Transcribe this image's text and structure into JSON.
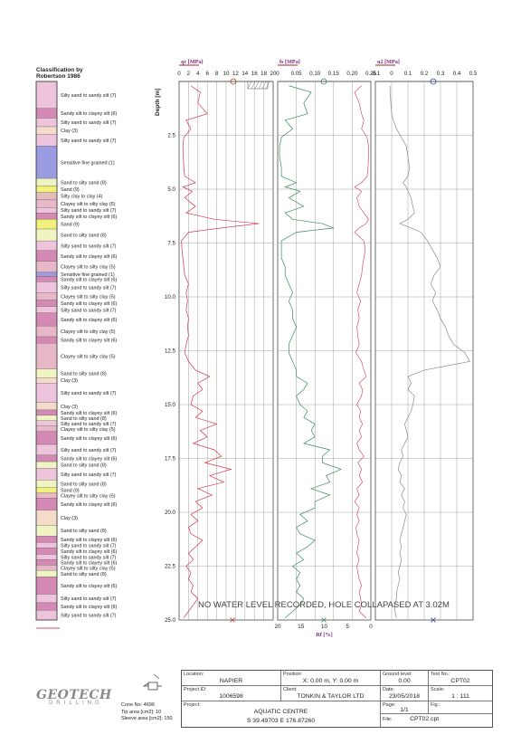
{
  "classification": {
    "title_lines": [
      "Classification by",
      "Robertson 1986"
    ],
    "layers": [
      {
        "label": "Silty sand to sandy silt (7)",
        "color": "#eec4dd",
        "top": 0,
        "bottom": 1.25
      },
      {
        "label": "Sandy silt to clayey silt (6)",
        "color": "#d48ab5",
        "top": 1.25,
        "bottom": 1.7
      },
      {
        "label": "Silty sand to sandy silt (7)",
        "color": "#eec4dd",
        "top": 1.7,
        "bottom": 2.1
      },
      {
        "label": "Clay (3)",
        "color": "#f3dcc9",
        "top": 2.1,
        "bottom": 2.45
      },
      {
        "label": "Silty sand to sandy silt (7)",
        "color": "#eec4dd",
        "top": 2.45,
        "bottom": 3.0
      },
      {
        "label": "Sensitive fine grained (1)",
        "color": "#9a9be0",
        "top": 3.0,
        "bottom": 4.5
      },
      {
        "label": "Sand to silty sand (8)",
        "color": "#f0f4c2",
        "top": 4.5,
        "bottom": 4.85
      },
      {
        "label": "Sand (9)",
        "color": "#f2f27a",
        "top": 4.85,
        "bottom": 5.15
      },
      {
        "label": "Silty clay to clay (4)",
        "color": "#e3bcbc",
        "top": 5.15,
        "bottom": 5.5
      },
      {
        "label": "Clayey silt to silty clay (5)",
        "color": "#e8b8c8",
        "top": 5.5,
        "bottom": 5.85
      },
      {
        "label": "Silty sand to sandy silt (7)",
        "color": "#eec4dd",
        "top": 5.85,
        "bottom": 6.1
      },
      {
        "label": "Sandy silt to clayey silt (6)",
        "color": "#d48ab5",
        "top": 6.1,
        "bottom": 6.4
      },
      {
        "label": "Sand (9)",
        "color": "#f2f27a",
        "top": 6.4,
        "bottom": 6.85
      },
      {
        "label": "Sand to silty sand (8)",
        "color": "#f0f4c2",
        "top": 6.85,
        "bottom": 7.4
      },
      {
        "label": "Silty sand to sandy silt (7)",
        "color": "#eec4dd",
        "top": 7.4,
        "bottom": 7.85
      },
      {
        "label": "Sandy silt to clayey silt (6)",
        "color": "#d48ab5",
        "top": 7.85,
        "bottom": 8.35
      },
      {
        "label": "Clayey silt to silty clay (5)",
        "color": "#e8b8c8",
        "top": 8.35,
        "bottom": 8.85
      },
      {
        "label": "Sensitive fine grained (1)",
        "color": "#9a9be0",
        "top": 8.85,
        "bottom": 9.05
      },
      {
        "label": "Sandy silt to clayey silt (6)",
        "color": "#d48ab5",
        "top": 9.05,
        "bottom": 9.3
      },
      {
        "label": "Silty sand to sandy silt (7)",
        "color": "#eec4dd",
        "top": 9.3,
        "bottom": 9.8
      },
      {
        "label": "Clayey silt to silty clay (5)",
        "color": "#e8b8c8",
        "top": 9.8,
        "bottom": 10.15
      },
      {
        "label": "Sandy silt to clayey silt (6)",
        "color": "#d48ab5",
        "top": 10.15,
        "bottom": 10.45
      },
      {
        "label": "Silty sand to sandy silt (7)",
        "color": "#eec4dd",
        "top": 10.45,
        "bottom": 10.75
      },
      {
        "label": "Sandy silt to clayey silt (6)",
        "color": "#d48ab5",
        "top": 10.75,
        "bottom": 11.35
      },
      {
        "label": "Clayey silt to silty clay (5)",
        "color": "#e8b8c8",
        "top": 11.35,
        "bottom": 11.85
      },
      {
        "label": "Sandy silt to clayey silt (6)",
        "color": "#d48ab5",
        "top": 11.85,
        "bottom": 12.15
      },
      {
        "label": "Clayey silt to silty clay (5)",
        "color": "#e8b8c8",
        "top": 12.15,
        "bottom": 13.35
      },
      {
        "label": "Sand to silty sand (8)",
        "color": "#f0f4c2",
        "top": 13.35,
        "bottom": 13.75
      },
      {
        "label": "Clay (3)",
        "color": "#f3dcc9",
        "top": 13.75,
        "bottom": 14.0
      },
      {
        "label": "Silty sand to sandy silt (7)",
        "color": "#eec4dd",
        "top": 14.0,
        "bottom": 14.9
      },
      {
        "label": "Clay (3)",
        "color": "#f3dcc9",
        "top": 14.9,
        "bottom": 15.25
      },
      {
        "label": "Sandy silt to clayey silt (6)",
        "color": "#d48ab5",
        "top": 15.25,
        "bottom": 15.5
      },
      {
        "label": "Sand to silty sand (8)",
        "color": "#f0f4c2",
        "top": 15.5,
        "bottom": 15.75
      },
      {
        "label": "Silty sand to sandy silt (7)",
        "color": "#eec4dd",
        "top": 15.75,
        "bottom": 16.0
      },
      {
        "label": "Clayey silt to silty clay (5)",
        "color": "#e8b8c8",
        "top": 16.0,
        "bottom": 16.25
      },
      {
        "label": "Sandy silt to clayey silt (6)",
        "color": "#d48ab5",
        "top": 16.25,
        "bottom": 16.85
      },
      {
        "label": "Silty sand to sandy silt (7)",
        "color": "#eec4dd",
        "top": 16.85,
        "bottom": 17.35
      },
      {
        "label": "Sandy silt to clayey silt (6)",
        "color": "#d48ab5",
        "top": 17.35,
        "bottom": 17.65
      },
      {
        "label": "Sand to silty sand (8)",
        "color": "#f0f4c2",
        "top": 17.65,
        "bottom": 17.95
      },
      {
        "label": "Silty sand to sandy silt (7)",
        "color": "#eec4dd",
        "top": 17.95,
        "bottom": 18.5
      },
      {
        "label": "Sand to silty sand (8)",
        "color": "#f0f4c2",
        "top": 18.5,
        "bottom": 18.85
      },
      {
        "label": "Sand (9)",
        "color": "#f2f27a",
        "top": 18.85,
        "bottom": 19.1
      },
      {
        "label": "Clayey silt to silty clay (5)",
        "color": "#e8b8c8",
        "top": 19.1,
        "bottom": 19.35
      },
      {
        "label": "Sandy silt to clayey silt (6)",
        "color": "#d48ab5",
        "top": 19.35,
        "bottom": 19.9
      },
      {
        "label": "Clay (3)",
        "color": "#f3dcc9",
        "top": 19.9,
        "bottom": 20.6
      },
      {
        "label": "Sand to silty sand (8)",
        "color": "#f0f4c2",
        "top": 20.6,
        "bottom": 21.1
      },
      {
        "label": "Sandy silt to clayey silt (6)",
        "color": "#d48ab5",
        "top": 21.1,
        "bottom": 21.4
      },
      {
        "label": "Silty sand to sandy silt (7)",
        "color": "#eec4dd",
        "top": 21.4,
        "bottom": 21.65
      },
      {
        "label": "Sandy silt to clayey silt (6)",
        "color": "#d48ab5",
        "top": 21.65,
        "bottom": 21.95
      },
      {
        "label": "Silty sand to sandy silt (7)",
        "color": "#eec4dd",
        "top": 21.95,
        "bottom": 22.2
      },
      {
        "label": "Sandy silt to clayey silt (6)",
        "color": "#d48ab5",
        "top": 22.2,
        "bottom": 22.45
      },
      {
        "label": "Clayey silt to silty clay (5)",
        "color": "#e8b8c8",
        "top": 22.45,
        "bottom": 22.7
      },
      {
        "label": "Sand to silty sand (8)",
        "color": "#f0f4c2",
        "top": 22.7,
        "bottom": 23.0
      },
      {
        "label": "Sandy silt to clayey silt (6)",
        "color": "#d48ab5",
        "top": 23.0,
        "bottom": 23.8
      },
      {
        "label": "Silty sand to sandy silt (7)",
        "color": "#eec4dd",
        "top": 23.8,
        "bottom": 24.2
      },
      {
        "label": "Sandy silt to clayey silt (6)",
        "color": "#d48ab5",
        "top": 24.2,
        "bottom": 24.55
      },
      {
        "label": "Silty sand to sandy silt (7)",
        "color": "#eec4dd",
        "top": 24.55,
        "bottom": 25.0
      }
    ]
  },
  "chart_data": {
    "type": "line",
    "depth_label": "Depth [m]",
    "depth_ticks": [
      "2.5",
      "5.0",
      "7.5",
      "10.0",
      "12.5",
      "15.0",
      "17.5",
      "20.0",
      "22.5",
      "25.0"
    ],
    "depth_range": [
      0,
      25
    ],
    "annotation": "NO WATER LEVEL RECORDED, HOLE COLLAPASED AT 3.02M",
    "qc": {
      "label": "qc [MPa]",
      "ticks": [
        "0",
        "2",
        "4",
        "6",
        "8",
        "10",
        "12",
        "14",
        "16",
        "18",
        "20"
      ],
      "range": [
        0,
        20
      ],
      "rf_label": "Rf [%]",
      "rf_ticks": [
        "20",
        "15",
        "10",
        "5",
        "0"
      ],
      "rf_range": [
        20,
        0
      ],
      "color": "#d0394b",
      "rf_color": "#d0394b",
      "depth": [
        0.2,
        0.5,
        1.0,
        1.5,
        1.8,
        2.2,
        2.6,
        3.0,
        3.5,
        4.0,
        4.4,
        4.7,
        4.9,
        5.1,
        5.4,
        5.8,
        6.1,
        6.4,
        6.6,
        6.8,
        7.0,
        7.4,
        7.8,
        8.2,
        8.6,
        9.0,
        9.4,
        9.8,
        10.2,
        10.6,
        11.0,
        11.4,
        11.8,
        12.2,
        12.6,
        13.0,
        13.4,
        13.7,
        14.0,
        14.3,
        14.6,
        15.0,
        15.3,
        15.6,
        15.9,
        16.2,
        16.5,
        16.8,
        17.1,
        17.4,
        17.7,
        18.0,
        18.3,
        18.6,
        18.9,
        19.2,
        19.5,
        19.8,
        20.1,
        20.4,
        20.7,
        21.0,
        21.3,
        21.6,
        21.9,
        22.2,
        22.5,
        22.8,
        23.1,
        23.4,
        23.7,
        24.0,
        24.3,
        24.6,
        24.9
      ],
      "values": [
        2.5,
        4.5,
        4.0,
        6.0,
        1.5,
        2.5,
        1.0,
        0.8,
        0.9,
        1.0,
        1.2,
        3.5,
        0.8,
        2.8,
        1.2,
        3.5,
        1.5,
        7.5,
        17.0,
        9.0,
        2.0,
        0.5,
        0.6,
        0.8,
        1.0,
        1.2,
        2.0,
        1.5,
        1.8,
        1.5,
        2.0,
        1.8,
        2.0,
        1.5,
        1.2,
        2.0,
        3.5,
        6.5,
        4.0,
        5.0,
        3.0,
        2.5,
        5.0,
        3.5,
        8.0,
        4.5,
        6.0,
        3.0,
        7.5,
        9.0,
        5.5,
        11.0,
        6.5,
        9.5,
        4.0,
        7.0,
        3.5,
        5.0,
        2.5,
        4.0,
        2.0,
        2.5,
        5.0,
        3.5,
        2.0,
        3.0,
        1.5,
        2.5,
        2.0,
        3.0,
        2.5,
        4.0,
        3.0,
        2.0,
        1.0
      ],
      "rf_values": [
        2.0,
        3.5,
        2.5,
        2.0,
        1.5,
        2.0,
        0.8,
        0.5,
        0.5,
        0.6,
        0.8,
        2.0,
        3.5,
        2.0,
        3.0,
        2.5,
        1.5,
        0.5,
        1.0,
        2.5,
        3.5,
        1.5,
        1.2,
        1.5,
        1.8,
        2.0,
        2.5,
        3.0,
        2.2,
        2.8,
        2.5,
        3.0,
        2.8,
        2.5,
        3.2,
        2.0,
        1.5,
        1.0,
        2.5,
        1.8,
        2.0,
        3.0,
        2.2,
        2.5,
        1.8,
        2.5,
        2.0,
        3.0,
        2.5,
        1.5,
        2.8,
        2.0,
        2.5,
        1.8,
        3.0,
        2.5,
        3.5,
        2.5,
        3.0,
        2.5,
        3.2,
        3.0,
        2.5,
        2.8,
        3.0,
        2.5,
        3.0,
        2.8,
        2.5,
        2.0,
        2.5,
        2.2,
        2.0,
        2.5,
        1.0
      ]
    },
    "fs": {
      "label": "fs [MPa]",
      "ticks": [
        "0",
        "0.05",
        "0.10",
        "0.15",
        "0.20",
        "0.25"
      ],
      "range": [
        0,
        0.25
      ],
      "color": "#3c8c5a",
      "depth": [
        0.2,
        0.5,
        1.0,
        1.5,
        1.8,
        2.2,
        2.6,
        3.0,
        3.5,
        4.0,
        4.4,
        4.7,
        4.9,
        5.1,
        5.4,
        5.8,
        6.1,
        6.4,
        6.6,
        6.8,
        7.0,
        7.4,
        7.8,
        8.2,
        8.6,
        9.0,
        9.4,
        9.8,
        10.2,
        10.6,
        11.0,
        11.4,
        11.8,
        12.2,
        12.6,
        13.0,
        13.4,
        13.7,
        14.0,
        14.3,
        14.6,
        15.0,
        15.3,
        15.6,
        15.9,
        16.2,
        16.5,
        16.8,
        17.1,
        17.4,
        17.7,
        18.0,
        18.3,
        18.6,
        18.9,
        19.2,
        19.5,
        19.8,
        20.1,
        20.4,
        20.7,
        21.0,
        21.3,
        21.6,
        21.9,
        22.2,
        22.5,
        22.8,
        23.1,
        23.4,
        23.7,
        24.0,
        24.3,
        24.6,
        24.9
      ],
      "values": [
        0.03,
        0.09,
        0.07,
        0.08,
        0.02,
        0.04,
        0.01,
        0.005,
        0.005,
        0.01,
        0.01,
        0.05,
        0.02,
        0.06,
        0.03,
        0.07,
        0.02,
        0.04,
        0.12,
        0.15,
        0.05,
        0.01,
        0.01,
        0.01,
        0.02,
        0.02,
        0.03,
        0.04,
        0.03,
        0.04,
        0.04,
        0.05,
        0.04,
        0.03,
        0.03,
        0.04,
        0.05,
        0.05,
        0.08,
        0.07,
        0.05,
        0.06,
        0.08,
        0.07,
        0.1,
        0.09,
        0.1,
        0.07,
        0.14,
        0.12,
        0.12,
        0.17,
        0.13,
        0.14,
        0.09,
        0.14,
        0.1,
        0.1,
        0.06,
        0.08,
        0.05,
        0.06,
        0.1,
        0.08,
        0.05,
        0.07,
        0.04,
        0.06,
        0.05,
        0.06,
        0.05,
        0.07,
        0.06,
        0.04,
        0.02
      ]
    },
    "u2": {
      "label": "u2 [MPa]",
      "ticks": [
        "-0.1",
        "0",
        "0.1",
        "0.2",
        "0.3",
        "0.4",
        "0.5"
      ],
      "range": [
        -0.1,
        0.5
      ],
      "color": "#8a8a9a",
      "depth": [
        0.2,
        0.5,
        1.0,
        1.5,
        1.8,
        2.2,
        2.6,
        3.0,
        3.5,
        4.0,
        4.4,
        4.7,
        4.9,
        5.1,
        5.4,
        5.8,
        6.1,
        6.4,
        6.6,
        6.8,
        7.0,
        7.4,
        7.8,
        8.2,
        8.6,
        9.0,
        9.4,
        9.8,
        10.2,
        10.6,
        11.0,
        11.4,
        11.8,
        12.2,
        12.6,
        13.0,
        13.4,
        13.7,
        14.0,
        14.3,
        14.6,
        15.0,
        15.3,
        15.6,
        15.9,
        16.2,
        16.5,
        16.8,
        17.1,
        17.4,
        17.7,
        18.0,
        18.3,
        18.6,
        18.9,
        19.2,
        19.5,
        19.8,
        20.1,
        20.4,
        20.7,
        21.0,
        21.3,
        21.6,
        21.9,
        22.2,
        22.5,
        22.8,
        23.1,
        23.4,
        23.7,
        24.0,
        24.3,
        24.6,
        24.9
      ],
      "values": [
        -0.01,
        -0.01,
        -0.005,
        0.0,
        0.01,
        0.03,
        0.06,
        0.09,
        0.1,
        0.11,
        0.1,
        0.07,
        0.09,
        0.1,
        0.12,
        0.13,
        0.14,
        0.1,
        0.05,
        0.12,
        0.18,
        0.22,
        0.25,
        0.28,
        0.3,
        0.26,
        0.24,
        0.27,
        0.25,
        0.28,
        0.3,
        0.33,
        0.35,
        0.38,
        0.45,
        0.48,
        0.2,
        0.1,
        0.12,
        0.1,
        0.14,
        0.13,
        0.12,
        0.1,
        0.08,
        0.09,
        0.1,
        0.08,
        0.06,
        0.07,
        0.05,
        0.04,
        0.06,
        0.05,
        0.08,
        0.06,
        0.08,
        0.07,
        0.09,
        0.08,
        0.07,
        0.06,
        0.05,
        0.06,
        0.05,
        0.06,
        0.05,
        0.04,
        0.05,
        0.04,
        0.03,
        0.03,
        0.02,
        0.02,
        0.03
      ]
    }
  },
  "footer": {
    "location_label": "Location:",
    "location": "NAPIER",
    "position_label": "Position:",
    "position": "X: 0.00 m, Y: 0.00 m",
    "ground_label": "Ground level:",
    "ground": "0.00",
    "test_label": "Test No.:",
    "test": "CPT02",
    "project_id_label": "Project ID:",
    "project_id": "1006598",
    "client_label": "Client:",
    "client": "TONKIN & TAYLOR LTD",
    "date_label": "Date:",
    "date": "23/05/2018",
    "scale_label": "Scale:",
    "scale": "1 : 111",
    "project_label": "Project:",
    "project": "AQUATIC CENTRE",
    "page_label": "Page:",
    "page": "1/1",
    "fig_label": "Fig.:",
    "fig": "",
    "coords": "S 39.49703 E 176.87260",
    "file_label": "File:",
    "file": "CPT02.cpt"
  },
  "cone": {
    "cone_no": "Cone No: 4696",
    "tip_area": "Tip area [cm2]: 10",
    "sleeve_area": "Sleeve area [cm2]: 150"
  },
  "logo": {
    "main": "GEOTECH",
    "sub": "DRILLING"
  }
}
